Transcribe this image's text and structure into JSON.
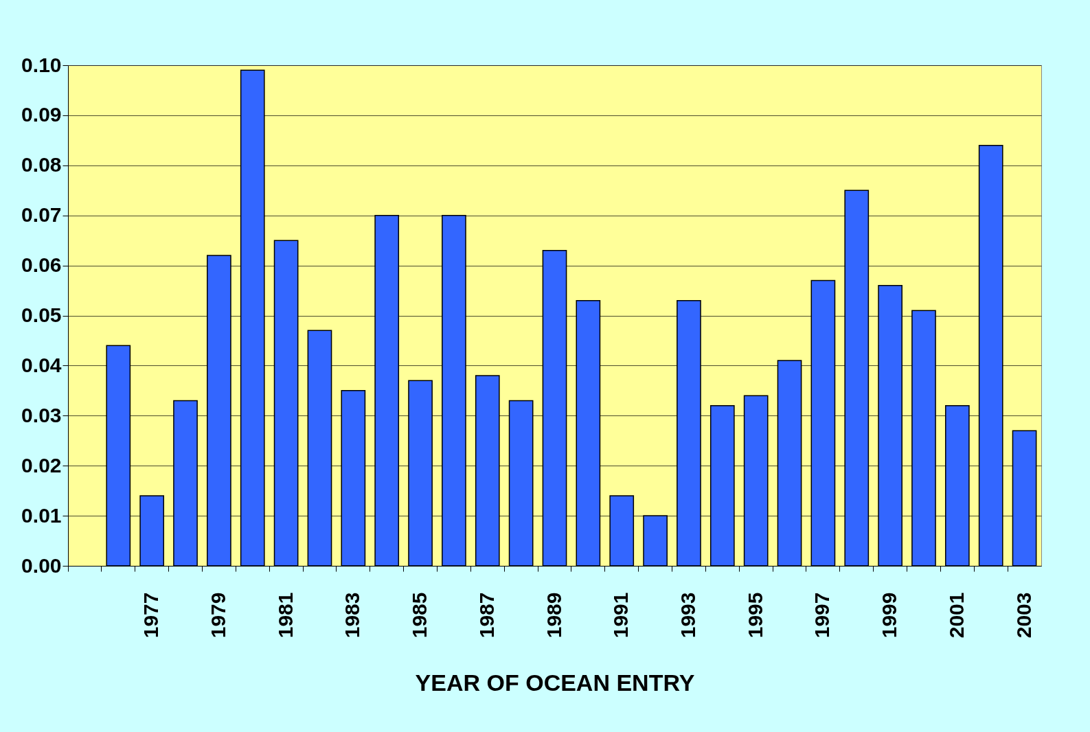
{
  "chart_data": {
    "type": "bar",
    "xlabel": "YEAR OF OCEAN ENTRY",
    "categories": [
      null,
      null,
      "1977",
      null,
      "1979",
      null,
      "1981",
      null,
      "1983",
      null,
      "1985",
      null,
      "1987",
      null,
      "1989",
      null,
      "1991",
      null,
      "1993",
      null,
      "1995",
      null,
      "1997",
      null,
      "1999",
      null,
      "2001",
      null,
      "2003"
    ],
    "values": [
      null,
      0.044,
      0.014,
      0.033,
      0.062,
      0.099,
      0.065,
      0.047,
      0.035,
      0.07,
      0.037,
      0.07,
      0.038,
      0.033,
      0.063,
      0.053,
      0.014,
      0.01,
      0.053,
      0.032,
      0.034,
      0.041,
      0.057,
      0.075,
      0.056,
      0.051,
      0.032,
      0.084,
      0.027
    ],
    "color": "#3366ff",
    "ylim": [
      0,
      0.1
    ],
    "yticks": [
      {
        "value": 0,
        "label": "0.00"
      },
      {
        "value": 0.01,
        "label": "0.01"
      },
      {
        "value": 0.02,
        "label": "0.02"
      },
      {
        "value": 0.03,
        "label": "0.03"
      },
      {
        "value": 0.04,
        "label": "0.04"
      },
      {
        "value": 0.05,
        "label": "0.05"
      },
      {
        "value": 0.06,
        "label": "0.06"
      },
      {
        "value": 0.07,
        "label": "0.07"
      },
      {
        "value": 0.08,
        "label": "0.08"
      },
      {
        "value": 0.09,
        "label": "0.09"
      },
      {
        "value": 0.1,
        "label": "0.10"
      }
    ],
    "grid": "y"
  }
}
